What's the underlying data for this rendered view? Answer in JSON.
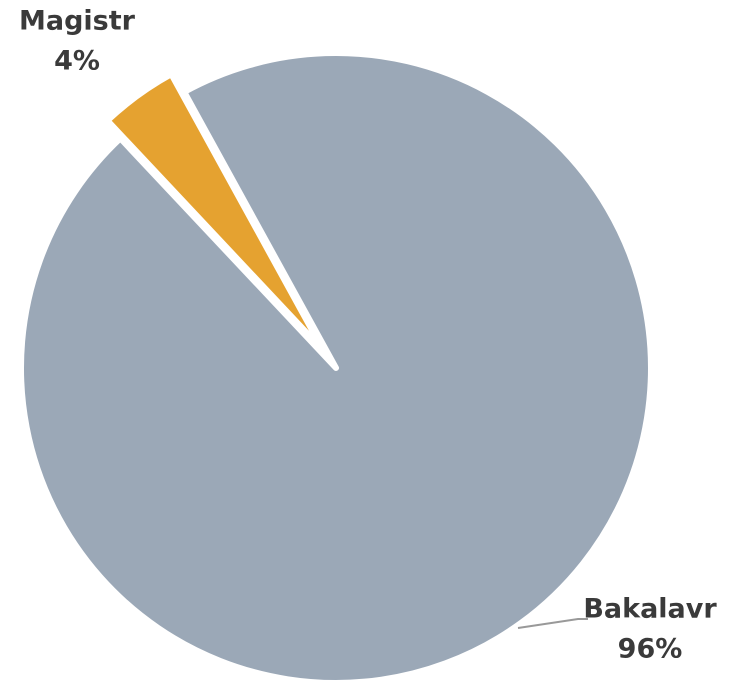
{
  "chart_data": {
    "type": "pie",
    "categories": [
      "Bakalavr",
      "Magistr"
    ],
    "values": [
      96,
      4
    ],
    "value_labels": [
      "96%",
      "4%"
    ],
    "colors": [
      "#9ba8b7",
      "#e5a230"
    ]
  }
}
